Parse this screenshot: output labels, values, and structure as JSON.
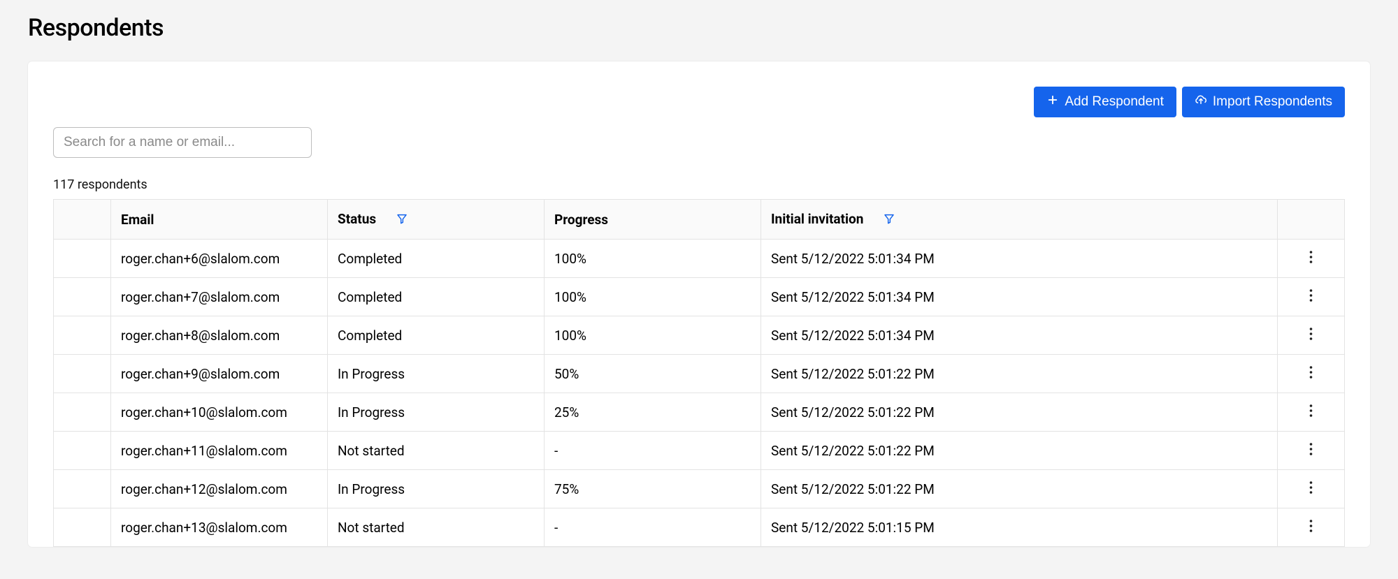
{
  "page_title": "Respondents",
  "toolbar": {
    "add_label": "Add Respondent",
    "import_label": "Import Respondents"
  },
  "search": {
    "placeholder": "Search for a name or email...",
    "value": ""
  },
  "count_text": "117 respondents",
  "columns": {
    "email": "Email",
    "status": "Status",
    "progress": "Progress",
    "invitation": "Initial invitation"
  },
  "rows": [
    {
      "email": "roger.chan+6@slalom.com",
      "status": "Completed",
      "progress": "100%",
      "invitation": "Sent 5/12/2022 5:01:34 PM"
    },
    {
      "email": "roger.chan+7@slalom.com",
      "status": "Completed",
      "progress": "100%",
      "invitation": "Sent 5/12/2022 5:01:34 PM"
    },
    {
      "email": "roger.chan+8@slalom.com",
      "status": "Completed",
      "progress": "100%",
      "invitation": "Sent 5/12/2022 5:01:34 PM"
    },
    {
      "email": "roger.chan+9@slalom.com",
      "status": "In Progress",
      "progress": "50%",
      "invitation": "Sent 5/12/2022 5:01:22 PM"
    },
    {
      "email": "roger.chan+10@slalom.com",
      "status": "In Progress",
      "progress": "25%",
      "invitation": "Sent 5/12/2022 5:01:22 PM"
    },
    {
      "email": "roger.chan+11@slalom.com",
      "status": "Not started",
      "progress": "-",
      "invitation": "Sent 5/12/2022 5:01:22 PM"
    },
    {
      "email": "roger.chan+12@slalom.com",
      "status": "In Progress",
      "progress": "75%",
      "invitation": "Sent 5/12/2022 5:01:22 PM"
    },
    {
      "email": "roger.chan+13@slalom.com",
      "status": "Not started",
      "progress": "-",
      "invitation": "Sent 5/12/2022 5:01:15 PM"
    }
  ],
  "colors": {
    "primary": "#1564ec",
    "page_bg": "#f4f4f4",
    "panel_bg": "#ffffff",
    "border": "#e3e3e3",
    "header_bg": "#fafafa"
  }
}
